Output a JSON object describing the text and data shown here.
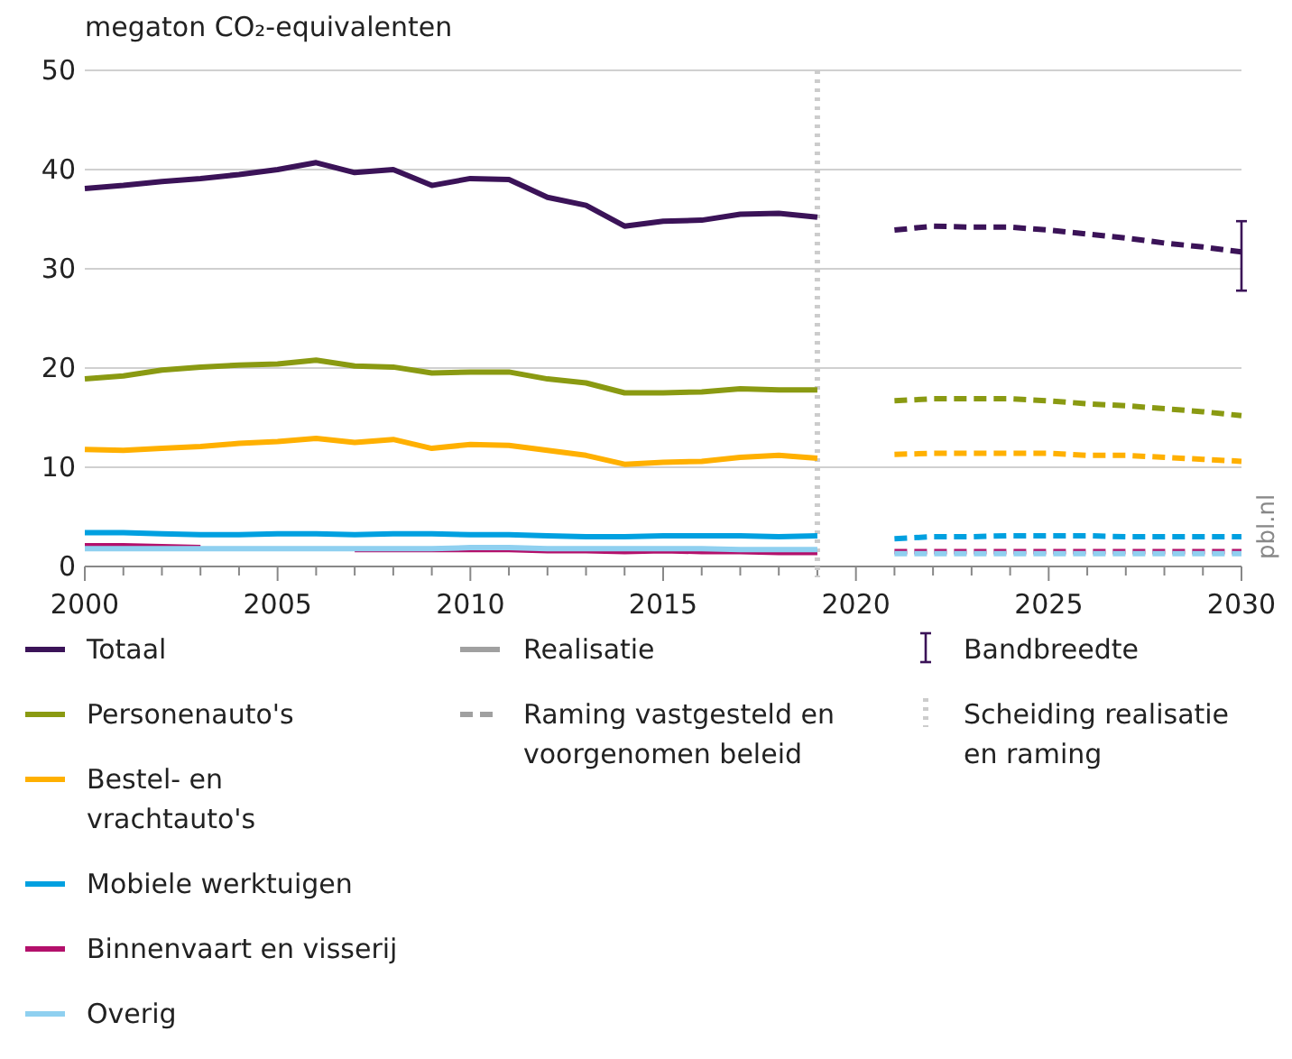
{
  "chart_data": {
    "type": "line",
    "ylabel": "megaton CO₂-equivalenten",
    "xlim": [
      2000,
      2030
    ],
    "xticks": [
      2000,
      {
        "value": 2001,
        "label": null
      },
      {
        "value": 2002,
        "label": null
      },
      {
        "value": 2003,
        "label": null
      },
      {
        "value": 2004,
        "label": null
      },
      2005,
      {
        "value": 2006,
        "label": null
      },
      {
        "value": 2007,
        "label": null
      },
      {
        "value": 2008,
        "label": null
      },
      {
        "value": 2009,
        "label": null
      },
      2010,
      {
        "value": 2011,
        "label": null
      },
      {
        "value": 2012,
        "label": null
      },
      {
        "value": 2013,
        "label": null
      },
      {
        "value": 2014,
        "label": null
      },
      2015,
      {
        "value": 2016,
        "label": null
      },
      {
        "value": 2017,
        "label": null
      },
      {
        "value": 2018,
        "label": null
      },
      {
        "value": 2019,
        "label": null
      },
      2020,
      {
        "value": 2021,
        "label": null
      },
      {
        "value": 2022,
        "label": null
      },
      {
        "value": 2023,
        "label": null
      },
      {
        "value": 2024,
        "label": null
      },
      2025,
      {
        "value": 2026,
        "label": null
      },
      {
        "value": 2027,
        "label": null
      },
      {
        "value": 2028,
        "label": null
      },
      {
        "value": 2029,
        "label": null
      },
      2030
    ],
    "ylim": [
      0,
      50
    ],
    "yticks": [
      0,
      10,
      20,
      30,
      40,
      50
    ],
    "grid": "y",
    "legend": "bottom",
    "line_style": "solid",
    "series": [
      {
        "name": "Totaal",
        "color": "#3b1358",
        "x": [
          2000,
          2001,
          2002,
          2003,
          2004,
          2005,
          2006,
          2007,
          2008,
          2009,
          2010,
          2011,
          2012,
          2013,
          2014,
          2015,
          2016,
          2017,
          2018,
          2019
        ],
        "values": [
          38.1,
          38.4,
          38.8,
          39.1,
          39.5,
          40.0,
          40.7,
          39.7,
          40.0,
          38.4,
          39.1,
          39.0,
          37.2,
          36.4,
          34.3,
          34.8,
          34.9,
          35.5,
          35.6,
          35.2
        ]
      },
      {
        "name": "Personenauto's",
        "color": "#8a9a12",
        "x": [
          2000,
          2001,
          2002,
          2003,
          2004,
          2005,
          2006,
          2007,
          2008,
          2009,
          2010,
          2011,
          2012,
          2013,
          2014,
          2015,
          2016,
          2017,
          2018,
          2019
        ],
        "values": [
          18.9,
          19.2,
          19.8,
          20.1,
          20.3,
          20.4,
          20.8,
          20.2,
          20.1,
          19.5,
          19.6,
          19.6,
          18.9,
          18.5,
          17.5,
          17.5,
          17.6,
          17.9,
          17.8,
          17.8
        ]
      },
      {
        "name": "Bestel- en\nvrachtauto's",
        "color": "#ffb000",
        "x": [
          2000,
          2001,
          2002,
          2003,
          2004,
          2005,
          2006,
          2007,
          2008,
          2009,
          2010,
          2011,
          2012,
          2013,
          2014,
          2015,
          2016,
          2017,
          2018,
          2019
        ],
        "values": [
          11.8,
          11.7,
          11.9,
          12.1,
          12.4,
          12.6,
          12.9,
          12.5,
          12.8,
          11.9,
          12.3,
          12.2,
          11.7,
          11.2,
          10.3,
          10.5,
          10.6,
          11.0,
          11.2,
          10.9
        ]
      },
      {
        "name": "Mobiele werktuigen",
        "color": "#00a0e0",
        "x": [
          2000,
          2001,
          2002,
          2003,
          2004,
          2005,
          2006,
          2007,
          2008,
          2009,
          2010,
          2011,
          2012,
          2013,
          2014,
          2015,
          2016,
          2017,
          2018,
          2019
        ],
        "values": [
          3.4,
          3.4,
          3.3,
          3.2,
          3.2,
          3.3,
          3.3,
          3.2,
          3.3,
          3.3,
          3.2,
          3.2,
          3.1,
          3.0,
          3.0,
          3.1,
          3.1,
          3.1,
          3.0,
          3.1
        ]
      },
      {
        "name": "Binnenvaart en visserij",
        "color": "#b3106b",
        "x": [
          2000,
          2001,
          2002,
          2003,
          2004,
          2005,
          2006,
          2007,
          2008,
          2009,
          2010,
          2011,
          2012,
          2013,
          2014,
          2015,
          2016,
          2017,
          2018,
          2019
        ],
        "values": [
          2.1,
          2.1,
          2.0,
          1.9,
          null,
          null,
          null,
          1.7,
          1.7,
          1.7,
          1.7,
          1.7,
          1.6,
          1.6,
          1.5,
          1.6,
          1.5,
          1.5,
          1.4,
          1.4
        ]
      },
      {
        "name": "Overig",
        "color": "#8fd0f0",
        "x": [
          2000,
          2001,
          2002,
          2003,
          2004,
          2005,
          2006,
          2007,
          2008,
          2009,
          2010,
          2011,
          2012,
          2013,
          2014,
          2015,
          2016,
          2017,
          2018,
          2019
        ],
        "values": [
          1.8,
          1.8,
          1.8,
          1.8,
          1.8,
          1.8,
          1.8,
          1.8,
          1.8,
          1.8,
          1.9,
          1.9,
          1.8,
          1.8,
          1.8,
          1.8,
          1.8,
          1.7,
          1.7,
          1.7
        ]
      },
      {
        "color": "#3b1358",
        "line_style": "dashed",
        "x": [
          2021,
          2022,
          2023,
          2024,
          2025,
          2026,
          2027,
          2028,
          2029,
          2030
        ],
        "values": [
          33.9,
          34.3,
          34.2,
          34.2,
          33.9,
          33.5,
          33.1,
          32.6,
          32.2,
          31.7
        ],
        "errors": [
          null,
          null,
          null,
          null,
          null,
          null,
          null,
          null,
          null,
          [
            27.8,
            34.8
          ]
        ]
      },
      {
        "color": "#8a9a12",
        "line_style": "dashed",
        "x": [
          2021,
          2022,
          2023,
          2024,
          2025,
          2026,
          2027,
          2028,
          2029,
          2030
        ],
        "values": [
          16.7,
          16.9,
          16.9,
          16.9,
          16.7,
          16.4,
          16.2,
          15.9,
          15.6,
          15.2
        ]
      },
      {
        "color": "#ffb000",
        "line_style": "dashed",
        "x": [
          2021,
          2022,
          2023,
          2024,
          2025,
          2026,
          2027,
          2028,
          2029,
          2030
        ],
        "values": [
          11.3,
          11.4,
          11.4,
          11.4,
          11.4,
          11.2,
          11.2,
          11.0,
          10.8,
          10.6
        ]
      },
      {
        "color": "#00a0e0",
        "line_style": "dashed",
        "x": [
          2021,
          2022,
          2023,
          2024,
          2025,
          2026,
          2027,
          2028,
          2029,
          2030
        ],
        "values": [
          2.8,
          3.0,
          3.0,
          3.1,
          3.1,
          3.1,
          3.0,
          3.0,
          3.0,
          3.0
        ]
      },
      {
        "color": "#b3106b",
        "line_style": "dashed",
        "x": [
          2021,
          2022,
          2023,
          2024,
          2025,
          2026,
          2027,
          2028,
          2029,
          2030
        ],
        "values": [
          1.5,
          1.5,
          1.5,
          1.5,
          1.5,
          1.5,
          1.5,
          1.5,
          1.5,
          1.5
        ]
      },
      {
        "color": "#8fd0f0",
        "line_style": "dashed",
        "x": [
          2021,
          2022,
          2023,
          2024,
          2025,
          2026,
          2027,
          2028,
          2029,
          2030
        ],
        "values": [
          1.3,
          1.3,
          1.3,
          1.3,
          1.3,
          1.3,
          1.3,
          1.3,
          1.3,
          1.3
        ]
      },
      {
        "name": "Realisatie",
        "color": "#a0a0a0",
        "line_style": "solid"
      },
      {
        "name": "Raming vastgesteld en\nvoorgenomen beleid",
        "color": "#a0a0a0",
        "line_style": "dashed"
      }
    ],
    "ref_lines": [
      {
        "axis": "x",
        "value": 2019,
        "label": "Scheiding realisatie\nen raming",
        "color": "#cccccc",
        "line_style": "dotted"
      }
    ],
    "annotations": [
      "Bandbreedte",
      "pbl.nl"
    ]
  }
}
